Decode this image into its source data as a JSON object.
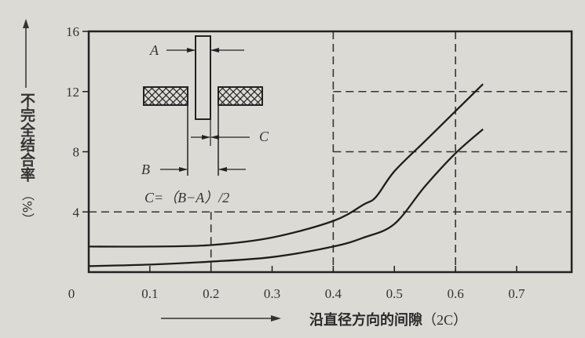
{
  "chart_data": {
    "type": "line",
    "title": "",
    "xlabel": "沿直径方向的间隙",
    "xlabel_unit": "（2C）",
    "ylabel": "不完全结合率",
    "ylabel_unit": "（%）",
    "xlim": [
      0,
      0.79
    ],
    "ylim": [
      0,
      16
    ],
    "x_ticks": [
      "0",
      "0.1",
      "0.2",
      "0.3",
      "0.4",
      "0.5",
      "0.6",
      "0.7"
    ],
    "y_ticks": [
      "4",
      "8",
      "12",
      "16"
    ],
    "grid": false,
    "series": [
      {
        "x": [
          0,
          0.1,
          0.2,
          0.3,
          0.4,
          0.45,
          0.47,
          0.5,
          0.55,
          0.6,
          0.645
        ],
        "y": [
          1.7,
          1.7,
          1.8,
          2.3,
          3.4,
          4.5,
          5.0,
          6.7,
          8.7,
          10.7,
          12.5
        ]
      },
      {
        "x": [
          0,
          0.1,
          0.2,
          0.3,
          0.4,
          0.45,
          0.5,
          0.55,
          0.6,
          0.645
        ],
        "y": [
          0.4,
          0.5,
          0.7,
          1.0,
          1.7,
          2.3,
          3.2,
          5.7,
          7.9,
          9.5
        ]
      }
    ],
    "reference_lines": {
      "horizontal": [
        {
          "y": 4,
          "from_x": 0
        },
        {
          "y": 8,
          "from_x": 0.4
        },
        {
          "y": 12,
          "from_x": 0.4
        }
      ],
      "vertical": [
        {
          "x": 0.2,
          "to_y": 4
        },
        {
          "x": 0.4,
          "to_y": 16
        },
        {
          "x": 0.6,
          "to_y": 16
        }
      ]
    },
    "inset": {
      "labels": {
        "a": "A",
        "b": "B",
        "c": "C"
      },
      "formula": "C=（B−A）/2"
    }
  }
}
